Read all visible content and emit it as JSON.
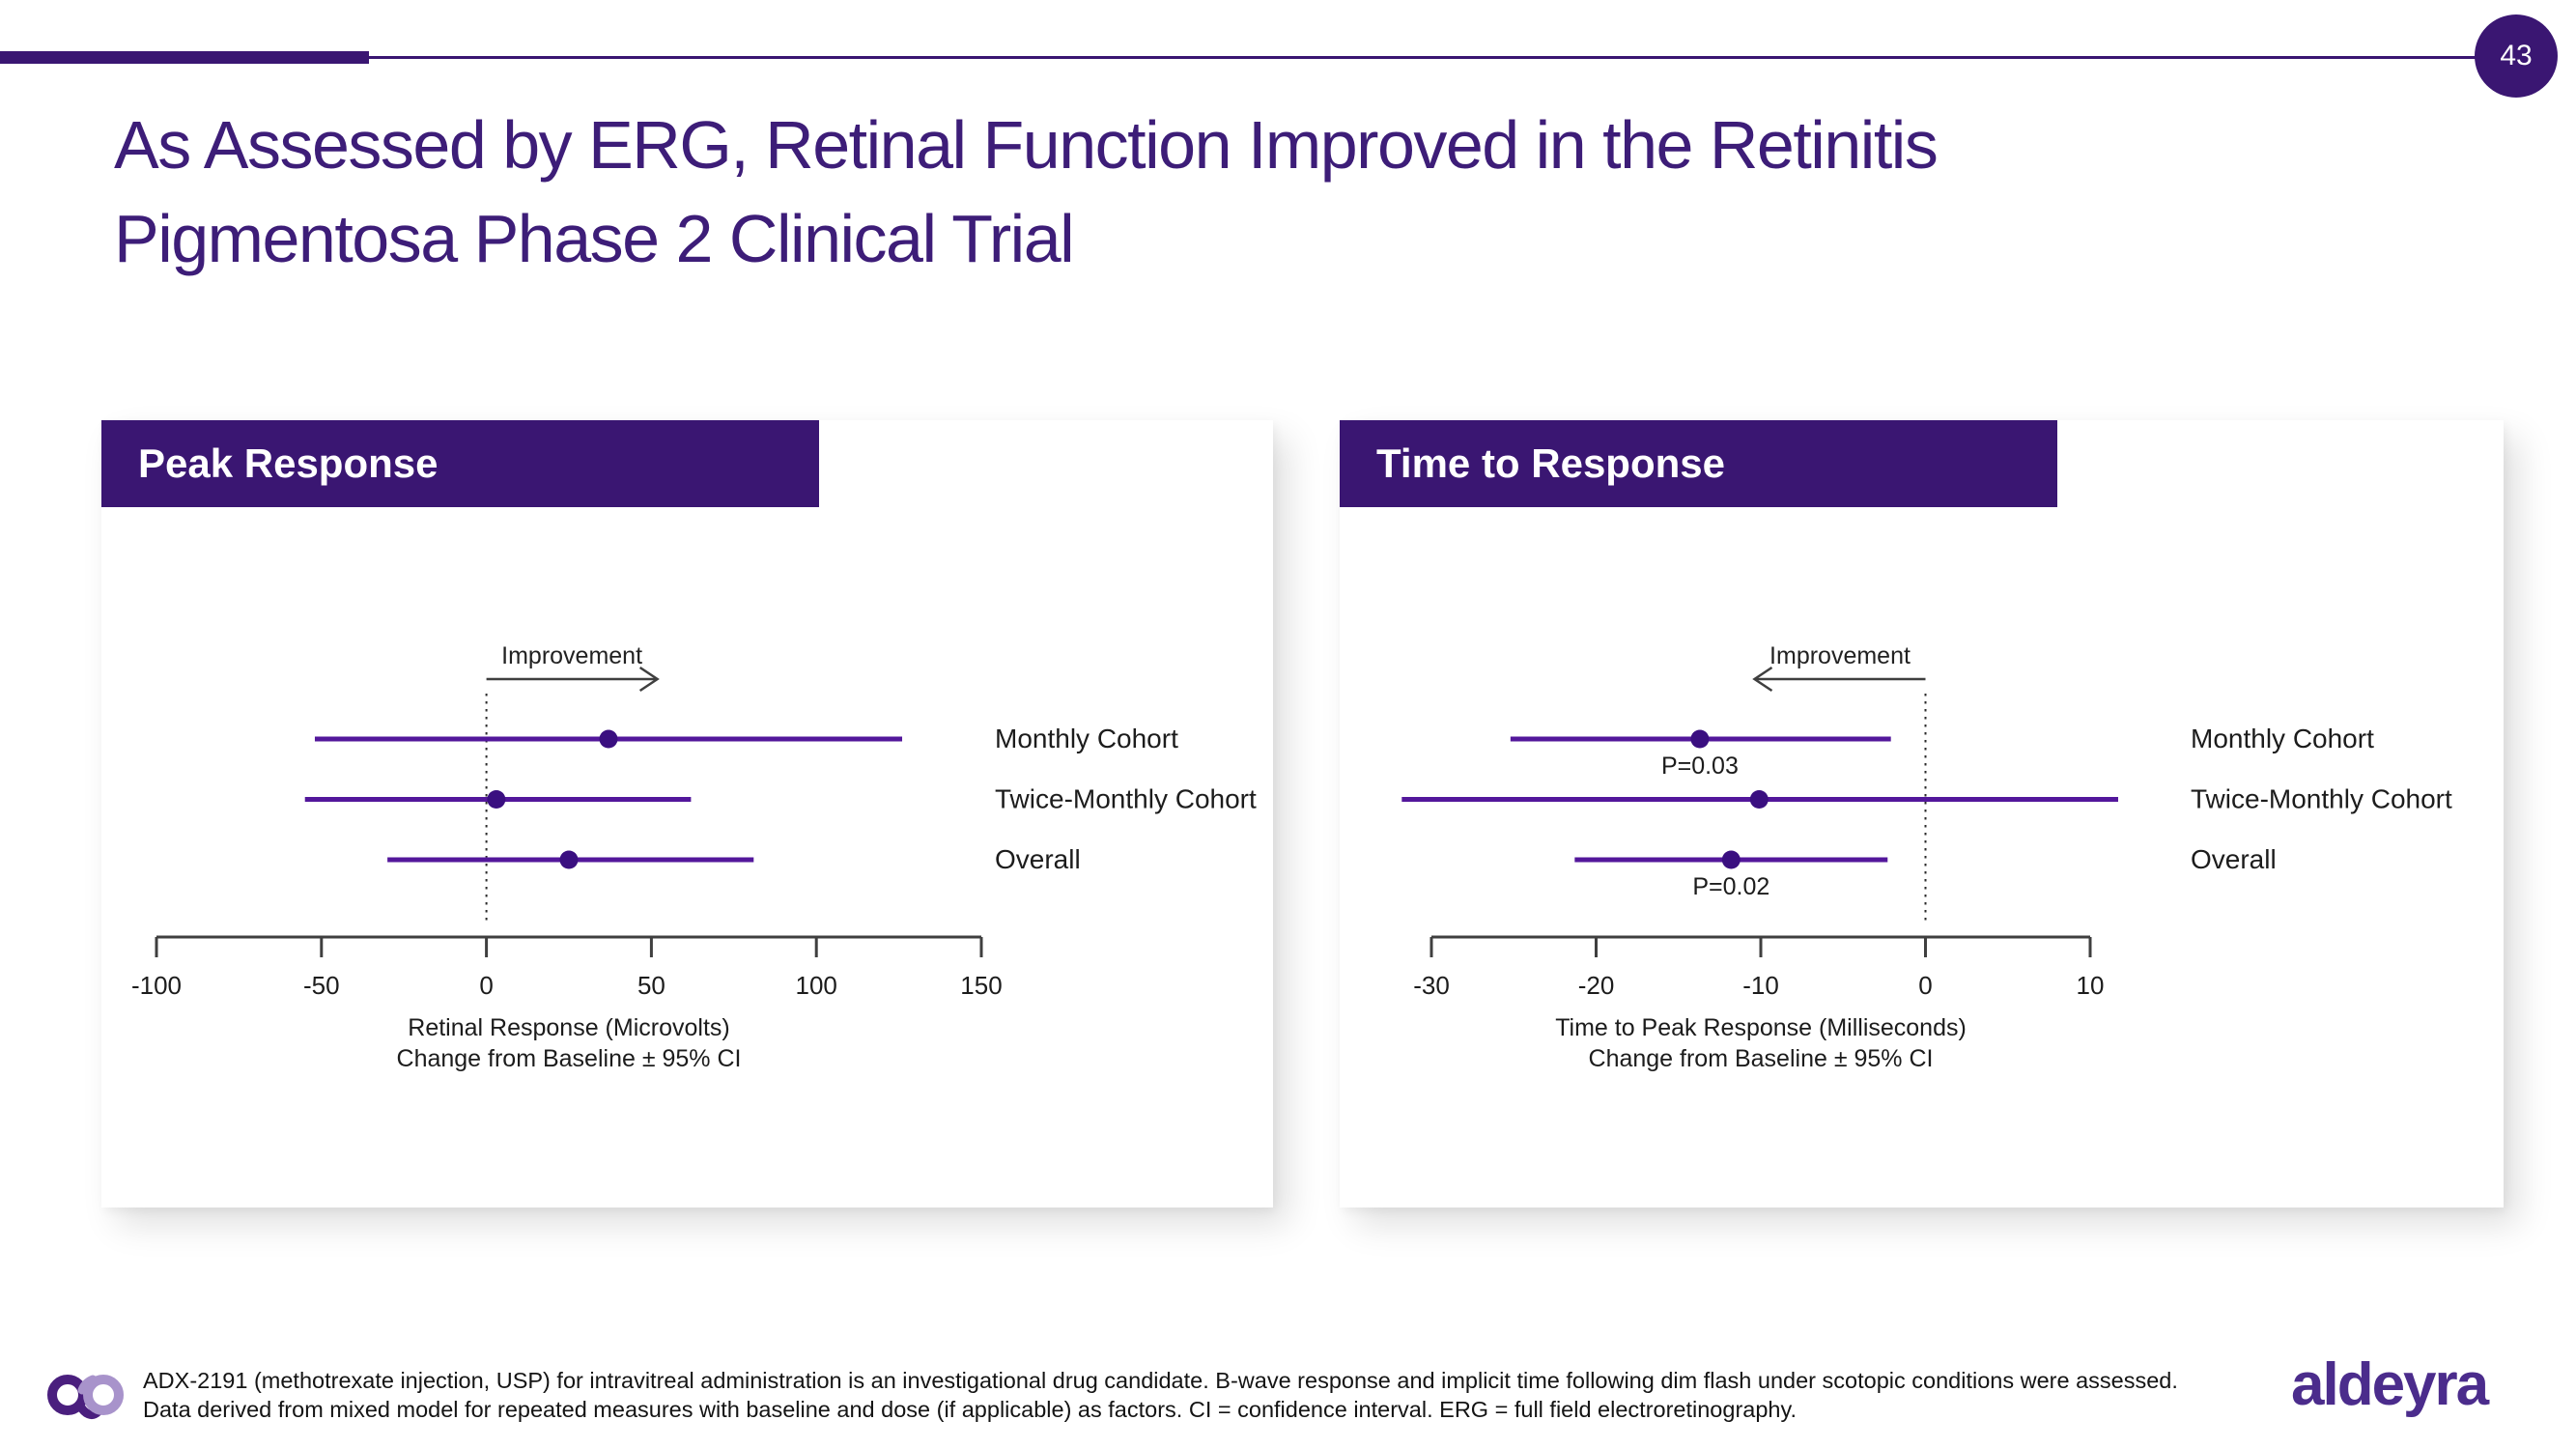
{
  "page": {
    "number": "43"
  },
  "title": {
    "line1": "As Assessed by ERG, Retinal Function Improved in the Retinitis",
    "line2": "Pigmentosa Phase 2 Clinical Trial"
  },
  "colors": {
    "brand_purple": "#3a1672",
    "ci_line": "#53179b",
    "estimate_dot": "#3a0f80",
    "text_ink": "#1c1c1c",
    "axis_gray": "#3f3f3f",
    "logo_lavender": "#a893cb",
    "wordmark_purple": "#4b2c8c"
  },
  "chart_data": [
    {
      "type": "forest",
      "title": "Peak Response",
      "annotation": {
        "label": "Improvement",
        "direction": "right"
      },
      "reference_line": 0,
      "xlim": [
        -100,
        150
      ],
      "xticks": [
        -100,
        -50,
        0,
        50,
        100,
        150
      ],
      "xlabel_line1": "Retinal Response (Microvolts)",
      "xlabel_line2": "Change from Baseline ± 95% CI",
      "points": [
        {
          "label": "Monthly Cohort",
          "estimate": 37,
          "ci_low": -52,
          "ci_high": 126,
          "p_label": ""
        },
        {
          "label": "Twice-Monthly Cohort",
          "estimate": 3,
          "ci_low": -55,
          "ci_high": 62,
          "p_label": ""
        },
        {
          "label": "Overall",
          "estimate": 25,
          "ci_low": -30,
          "ci_high": 81,
          "p_label": ""
        }
      ]
    },
    {
      "type": "forest",
      "title": "Time to Response",
      "annotation": {
        "label": "Improvement",
        "direction": "left"
      },
      "reference_line": 0,
      "xlim": [
        -30,
        10
      ],
      "xticks": [
        -30,
        -20,
        -10,
        0,
        10
      ],
      "xlabel_line1": "Time to Peak Response (Milliseconds)",
      "xlabel_line2": "Change from Baseline ± 95% CI",
      "points": [
        {
          "label": "Monthly Cohort",
          "estimate": -13.7,
          "ci_low": -25.2,
          "ci_high": -2.1,
          "p_label": "P=0.03"
        },
        {
          "label": "Twice-Monthly Cohort",
          "estimate": -10.1,
          "ci_low": -31.8,
          "ci_high": 11.7,
          "p_label": ""
        },
        {
          "label": "Overall",
          "estimate": -11.8,
          "ci_low": -21.3,
          "ci_high": -2.3,
          "p_label": "P=0.02"
        }
      ]
    }
  ],
  "footer": {
    "line1": "ADX-2191 (methotrexate injection, USP) for intravitreal administration is an investigational drug candidate. B-wave response and implicit time following dim flash under scotopic conditions were assessed.",
    "line2": "Data derived from mixed model for repeated measures with baseline and dose (if applicable) as factors. CI = confidence interval. ERG = full field electroretinography.",
    "logo_text": "aldeyra"
  }
}
